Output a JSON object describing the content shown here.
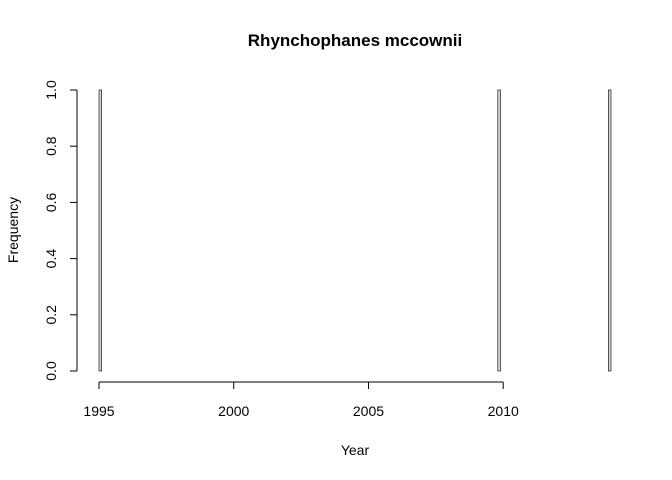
{
  "chart_data": {
    "type": "bar",
    "title": "Rhynchophanes mccownii",
    "xlabel": "Year",
    "ylabel": "Frequency",
    "xlim": [
      1995,
      2014
    ],
    "ylim": [
      0,
      1
    ],
    "xticks": [
      "1995",
      "2000",
      "2005",
      "2010"
    ],
    "yticks": [
      "0.0",
      "0.2",
      "0.4",
      "0.6",
      "0.8",
      "1.0"
    ],
    "bin_width": 0.1,
    "bins": [
      {
        "start": 1995.0,
        "end": 1995.1,
        "count": 1
      },
      {
        "start": 1995.1,
        "end": 2009.8,
        "count": 0
      },
      {
        "start": 2009.8,
        "end": 2009.9,
        "count": 1
      },
      {
        "start": 2009.9,
        "end": 2013.9,
        "count": 0
      },
      {
        "start": 2013.9,
        "end": 2014.0,
        "count": 1
      }
    ],
    "bar_color": "#d3d3d3",
    "grid": false,
    "legend": "none"
  }
}
